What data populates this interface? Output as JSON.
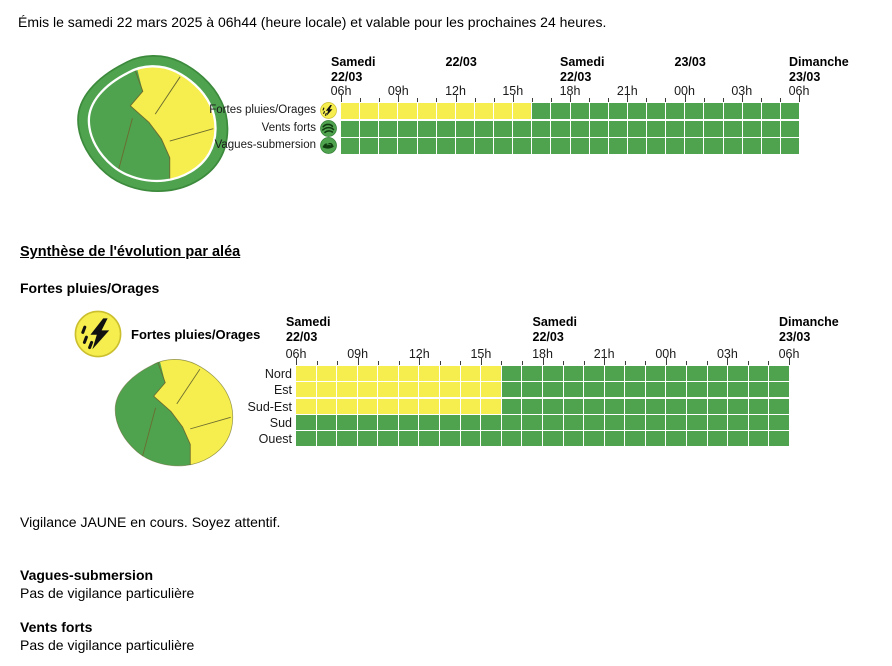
{
  "colors": {
    "yellow": "#F6EE4E",
    "green": "#4FA34F",
    "green_ring": "#4FA34F",
    "green_ring_edge": "#3C8A3C",
    "zone_border": "#6B6B2F",
    "grid_line": "#FFFFFF",
    "tick": "#3C3C3C",
    "icon_dark": "#0F3B0F",
    "yellow_icon_border": "#CBBF2E",
    "green_icon_border": "#2F7D32",
    "white": "#FFFFFF"
  },
  "header": {
    "issued_text": "Émis le samedi 22 mars 2025 à 06h44 (heure locale) et valable pour les prochaines 24 heures."
  },
  "overview": {
    "map": {
      "description": "carte-vigilance-reunion",
      "coastal_color": "green",
      "zones_yellow": [
        "Nord",
        "Est",
        "Sud-Est"
      ],
      "zones_green": [
        "Ouest",
        "Sud"
      ]
    },
    "timeline": {
      "hours_total": 24,
      "hour_labels": [
        "06h",
        "09h",
        "12h",
        "15h",
        "18h",
        "21h",
        "00h",
        "03h",
        "06h"
      ],
      "dates": [
        {
          "line1": "Samedi",
          "line2": "22/03",
          "hour": 0
        },
        {
          "line1": "",
          "line2": "22/03",
          "hour": 6
        },
        {
          "line1": "Samedi",
          "line2": "22/03",
          "hour": 12
        },
        {
          "line1": "",
          "line2": "23/03",
          "hour": 18
        },
        {
          "line1": "Dimanche",
          "line2": "23/03",
          "hour": 24
        }
      ],
      "rows": [
        {
          "label": "Fortes pluies/Orages",
          "icon": "storm-icon",
          "segments": [
            {
              "color": "yellow",
              "hours": 10
            },
            {
              "color": "green",
              "hours": 14
            }
          ]
        },
        {
          "label": "Vents forts",
          "icon": "wind-icon",
          "segments": [
            {
              "color": "green",
              "hours": 24
            }
          ]
        },
        {
          "label": "Vagues-submersion",
          "icon": "wave-icon",
          "segments": [
            {
              "color": "green",
              "hours": 24
            }
          ]
        }
      ]
    }
  },
  "synthesis": {
    "title": "Synthèse de l'évolution par aléa",
    "subtitle": "Fortes pluies/Orages",
    "legend_label": "Fortes pluies/Orages",
    "map": {
      "description": "carte-zones-reunion",
      "zones_yellow": [
        "Nord",
        "Est",
        "Sud-Est"
      ],
      "zones_green": [
        "Ouest",
        "Sud"
      ]
    },
    "timeline": {
      "hours_total": 24,
      "hour_labels": [
        "06h",
        "09h",
        "12h",
        "15h",
        "18h",
        "21h",
        "00h",
        "03h",
        "06h"
      ],
      "dates": [
        {
          "line1": "Samedi",
          "line2": "22/03",
          "hour": 0
        },
        {
          "line1": "Samedi",
          "line2": "22/03",
          "hour": 12
        },
        {
          "line1": "Dimanche",
          "line2": "23/03",
          "hour": 24
        }
      ],
      "rows": [
        {
          "label": "Nord",
          "segments": [
            {
              "color": "yellow",
              "hours": 10
            },
            {
              "color": "green",
              "hours": 14
            }
          ]
        },
        {
          "label": "Est",
          "segments": [
            {
              "color": "yellow",
              "hours": 10
            },
            {
              "color": "green",
              "hours": 14
            }
          ]
        },
        {
          "label": "Sud-Est",
          "segments": [
            {
              "color": "yellow",
              "hours": 10
            },
            {
              "color": "green",
              "hours": 14
            }
          ]
        },
        {
          "label": "Sud",
          "segments": [
            {
              "color": "green",
              "hours": 24
            }
          ]
        },
        {
          "label": "Ouest",
          "segments": [
            {
              "color": "green",
              "hours": 24
            }
          ]
        }
      ]
    },
    "status_text": "Vigilance JAUNE en cours. Soyez attentif."
  },
  "footer": {
    "sections": [
      {
        "title": "Vagues-submersion",
        "text": "Pas de vigilance particulière"
      },
      {
        "title": "Vents forts",
        "text": "Pas de vigilance particulière"
      }
    ]
  }
}
